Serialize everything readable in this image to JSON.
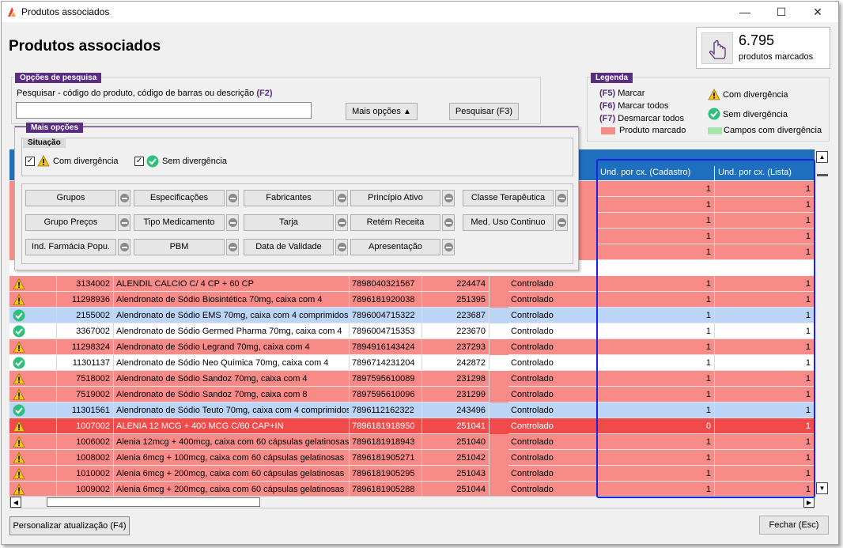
{
  "window": {
    "title": "Produtos associados",
    "controls": {
      "minimize": "—",
      "maximize": "☐",
      "close": "✕"
    }
  },
  "page": {
    "heading": "Produtos associados"
  },
  "counter": {
    "value": "6.795",
    "label": "produtos marcados"
  },
  "search": {
    "group_label": "Opções de pesquisa",
    "label_text": "Pesquisar - código do produto, código de barras ou descrição",
    "label_key": "(F2)",
    "value": "",
    "more_options": "Mais opções",
    "search_button": "Pesquisar (F3)"
  },
  "legend": {
    "title": "Legenda",
    "items": [
      {
        "key": "(F5)",
        "text": "Marcar"
      },
      {
        "key": "(F6)",
        "text": "Marcar todos"
      },
      {
        "key": "(F7)",
        "text": "Desmarcar todos"
      }
    ],
    "marked": "Produto marcado",
    "with_divergence": "Com divergência",
    "without_divergence": "Sem divergência",
    "fields_divergence": "Campos com divergência",
    "colors": {
      "marked": "#f88a88",
      "fields_divergence": "#a8e6b0"
    }
  },
  "more_options": {
    "title": "Mais opções",
    "situation": {
      "label": "Situação",
      "with_divergence": "Com divergência",
      "without_divergence": "Sem divergência"
    },
    "filters": [
      "Grupos",
      "Especificações",
      "Fabricantes",
      "Princípio Ativo",
      "Classe Terapêutica",
      "Grupo Preços",
      "Tipo Medicamento",
      "Tarja",
      "Retém Receita",
      "Med. Uso Continuo",
      "Ind. Farmácia Popu.",
      "PBM",
      "Data de Validade",
      "Apresentação"
    ]
  },
  "table": {
    "columns": [
      "Und. por cx. (Cadastro)",
      "Und. por cx. (Lista)"
    ],
    "hidden_rows": [
      {
        "cadastro": "1",
        "lista": "1"
      },
      {
        "cadastro": "1",
        "lista": "1"
      },
      {
        "cadastro": "1",
        "lista": "1"
      },
      {
        "cadastro": "1",
        "lista": "1"
      },
      {
        "cadastro": "1",
        "lista": "1"
      }
    ],
    "rows": [
      {
        "status": "warn",
        "code": "3134002",
        "desc": "ALENDIL CALCIO C/ 4 CP + 60 CP",
        "barcode": "7898040321567",
        "id": "224474",
        "tarja": "Controlado",
        "cadastro": "1",
        "lista": "1",
        "color": "pink"
      },
      {
        "status": "warn",
        "code": "11298936",
        "desc": "Alendronato de Sódio Biosintética 70mg, caixa com 4",
        "barcode": "7896181920038",
        "id": "251395",
        "tarja": "Controlado",
        "cadastro": "1",
        "lista": "1",
        "color": "pink"
      },
      {
        "status": "ok",
        "code": "2155002",
        "desc": "Alendronato de Sódio EMS 70mg, caixa com 4 comprimidos",
        "barcode": "7896004715322",
        "id": "223687",
        "tarja": "Controlado",
        "cadastro": "1",
        "lista": "1",
        "color": "blue"
      },
      {
        "status": "ok",
        "code": "3367002",
        "desc": "Alendronato de Sódio Germed Pharma 70mg, caixa com 4",
        "barcode": "7896004715353",
        "id": "223670",
        "tarja": "Controlado",
        "cadastro": "1",
        "lista": "1",
        "color": "white"
      },
      {
        "status": "warn",
        "code": "11298324",
        "desc": "Alendronato de Sódio Legrand 70mg, caixa com 4",
        "barcode": "7894916143424",
        "id": "237293",
        "tarja": "Controlado",
        "cadastro": "1",
        "lista": "1",
        "color": "pink"
      },
      {
        "status": "ok",
        "code": "11301137",
        "desc": "Alendronato de Sódio Neo Química 70mg, caixa com 4",
        "barcode": "7896714231204",
        "id": "242872",
        "tarja": "Controlado",
        "cadastro": "1",
        "lista": "1",
        "color": "white"
      },
      {
        "status": "warn",
        "code": "7518002",
        "desc": "Alendronato de Sódio Sandoz 70mg, caixa com 4",
        "barcode": "7897595610089",
        "id": "231298",
        "tarja": "Controlado",
        "cadastro": "1",
        "lista": "1",
        "color": "pink"
      },
      {
        "status": "warn",
        "code": "7519002",
        "desc": "Alendronato de Sódio Sandoz 70mg, caixa com 8",
        "barcode": "7897595610096",
        "id": "231299",
        "tarja": "Controlado",
        "cadastro": "1",
        "lista": "1",
        "color": "pink"
      },
      {
        "status": "ok",
        "code": "11301561",
        "desc": "Alendronato de Sódio Teuto 70mg, caixa com 4 comprimidos",
        "barcode": "7896112162322",
        "id": "243496",
        "tarja": "Controlado",
        "cadastro": "1",
        "lista": "1",
        "color": "blue"
      },
      {
        "status": "warn",
        "code": "1007002",
        "desc": "ALENIA 12 MCG + 400 MCG C/60 CAP+IN",
        "barcode": "7896181918950",
        "id": "251041",
        "tarja": "Controlado",
        "cadastro": "0",
        "lista": "1",
        "color": "red"
      },
      {
        "status": "warn",
        "code": "1006002",
        "desc": "Alenia 12mcg + 400mcg, caixa com 60 cápsulas gelatinosas",
        "barcode": "7896181918943",
        "id": "251040",
        "tarja": "Controlado",
        "cadastro": "1",
        "lista": "1",
        "color": "pink"
      },
      {
        "status": "warn",
        "code": "1008002",
        "desc": "Alenia 6mcg + 100mcg, caixa com 60 cápsulas gelatinosas",
        "barcode": "7896181905271",
        "id": "251042",
        "tarja": "Controlado",
        "cadastro": "1",
        "lista": "1",
        "color": "pink"
      },
      {
        "status": "warn",
        "code": "1010002",
        "desc": "Alenia 6mcg + 200mcg, caixa com 60 cápsulas gelatinosas",
        "barcode": "7896181905295",
        "id": "251043",
        "tarja": "Controlado",
        "cadastro": "1",
        "lista": "1",
        "color": "pink"
      },
      {
        "status": "warn",
        "code": "1009002",
        "desc": "Alenia 6mcg + 200mcg, caixa com 60 cápsulas gelatinosas",
        "barcode": "7896181905288",
        "id": "251044",
        "tarja": "Controlado",
        "cadastro": "1",
        "lista": "1",
        "color": "pink"
      }
    ]
  },
  "footer": {
    "customize_button": "Personalizar atualização (F4)",
    "close_button": "Fechar (Esc)"
  }
}
